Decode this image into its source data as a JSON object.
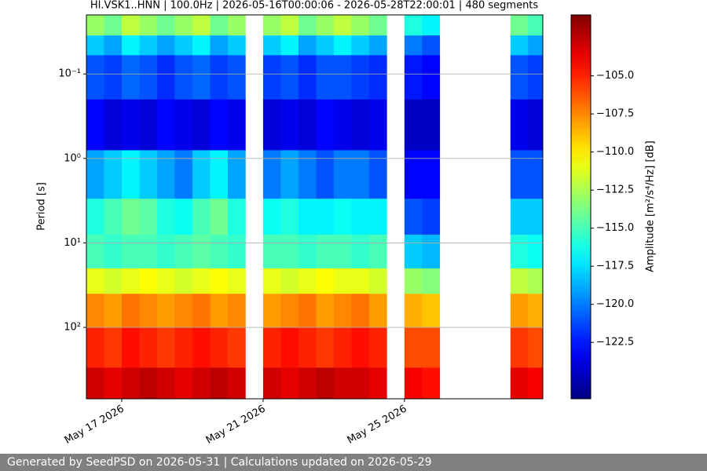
{
  "chart_data": {
    "type": "spectrogram",
    "title": "HI.VSK1..HNN | 100.0Hz | 2026-05-16T00:00:06 - 2026-05-28T22:00:01 | 480 segments",
    "y_label": "Period [s]",
    "colorbar_label": "Amplitude [m²/s⁴/Hz] [dB]",
    "colormap": "jet",
    "log_y": true,
    "grid": true,
    "x": [
      "2026-05-16T00:00",
      "2026-05-16T12:00",
      "2026-05-17T00:00",
      "2026-05-17T12:00",
      "2026-05-18T00:00",
      "2026-05-18T12:00",
      "2026-05-19T00:00",
      "2026-05-19T12:00",
      "2026-05-20T00:00",
      "2026-05-20T12:00",
      "2026-05-21T00:00",
      "2026-05-21T12:00",
      "2026-05-22T00:00",
      "2026-05-22T12:00",
      "2026-05-23T00:00",
      "2026-05-23T12:00",
      "2026-05-24T00:00",
      "2026-05-24T12:00",
      "2026-05-25T00:00",
      "2026-05-25T12:00",
      "2026-05-26T00:00",
      "2026-05-26T12:00",
      "2026-05-27T00:00",
      "2026-05-27T12:00",
      "2026-05-28T00:00",
      "2026-05-28T12:00"
    ],
    "xlim": [
      "2026-05-16T00:00:06",
      "2026-05-28T22:00:01"
    ],
    "xticks": [
      {
        "value": "2026-05-17",
        "label": "May 17 2026"
      },
      {
        "value": "2026-05-21",
        "label": "May 21 2026"
      },
      {
        "value": "2026-05-25",
        "label": "May 25 2026"
      }
    ],
    "y_bins": [
      0.02,
      0.035,
      0.06,
      0.2,
      0.8,
      3,
      8,
      20,
      40,
      100,
      300,
      700
    ],
    "ylim": [
      0.02,
      700
    ],
    "yticks": [
      {
        "value": 0.1,
        "label": "10⁻¹"
      },
      {
        "value": 1,
        "label": "10⁰"
      },
      {
        "value": 10,
        "label": "10¹"
      },
      {
        "value": 100,
        "label": "10²"
      }
    ],
    "clim": [
      -126.2,
      -101
    ],
    "cticks": [
      {
        "value": -105,
        "label": "−105.0"
      },
      {
        "value": -107.5,
        "label": "−107.5"
      },
      {
        "value": -110,
        "label": "−110.0"
      },
      {
        "value": -112.5,
        "label": "−112.5"
      },
      {
        "value": -115,
        "label": "−115.0"
      },
      {
        "value": -117.5,
        "label": "−117.5"
      },
      {
        "value": -120,
        "label": "−120.0"
      },
      {
        "value": -122.5,
        "label": "−122.5"
      }
    ],
    "values": [
      [
        -113,
        -114,
        -112,
        -113,
        -114,
        -113,
        -112,
        -114,
        -113,
        null,
        -113,
        -112,
        -114,
        -113,
        -112,
        -113,
        -114,
        null,
        -116,
        -117,
        null,
        null,
        null,
        null,
        -114,
        -115
      ],
      [
        -118,
        -119,
        -117,
        -118,
        -119,
        -118,
        -117,
        -119,
        -118,
        null,
        -118,
        -117,
        -119,
        -118,
        -117,
        -118,
        -119,
        null,
        -120,
        -121,
        null,
        null,
        null,
        null,
        -118,
        -119
      ],
      [
        -121,
        -121.5,
        -120.5,
        -121,
        -122,
        -121,
        -120.5,
        -121.5,
        -121,
        null,
        -121.5,
        -121,
        -122,
        -121,
        -121,
        -121.5,
        -122,
        null,
        -122.5,
        -123,
        null,
        null,
        null,
        null,
        -121,
        -121.5
      ],
      [
        -123,
        -124,
        -123.5,
        -124,
        -123,
        -123.5,
        -124,
        -123,
        -123.5,
        null,
        -124,
        -123.5,
        -124,
        -123,
        -123.5,
        -124,
        -123.5,
        null,
        -124.5,
        -124.5,
        null,
        null,
        null,
        null,
        -123.5,
        -124
      ],
      [
        -119,
        -118,
        -117,
        -118,
        -119,
        -120,
        -118,
        -117,
        -119,
        null,
        -120,
        -119,
        -120,
        -121,
        -120,
        -120,
        -121,
        null,
        -123,
        -123,
        null,
        null,
        null,
        null,
        -121,
        -121
      ],
      [
        -116,
        -115,
        -114,
        -114.5,
        -116,
        -116.5,
        -115,
        -114,
        -116,
        null,
        -116.5,
        -116,
        -117,
        -117,
        -116.5,
        -117,
        -117,
        null,
        -121,
        -121.5,
        null,
        null,
        null,
        null,
        -118,
        -118
      ],
      [
        -115,
        -115.5,
        -115,
        -115,
        -115.5,
        -115,
        -114.5,
        -115,
        -115.5,
        null,
        -115,
        -115,
        -115.5,
        -115,
        -115,
        -115.5,
        -115,
        null,
        -118,
        -118.5,
        null,
        null,
        null,
        null,
        -116,
        -116.5
      ],
      [
        -111,
        -111.5,
        -111,
        -110.5,
        -111,
        -111.5,
        -111,
        -110.5,
        -111,
        null,
        -111,
        -111.5,
        -111,
        -110.5,
        -111,
        -111,
        -111.5,
        null,
        -113,
        -113.5,
        null,
        null,
        null,
        null,
        -112,
        -112.5
      ],
      [
        -107.5,
        -108,
        -107,
        -107.5,
        -108,
        -107.5,
        -107,
        -108,
        -107.5,
        null,
        -108,
        -107.5,
        -107,
        -108,
        -107.5,
        -107,
        -108,
        null,
        -108.5,
        -109,
        null,
        null,
        null,
        null,
        -108,
        -108.5
      ],
      [
        -105,
        -105.5,
        -104.5,
        -105,
        -105.5,
        -105,
        -104.5,
        -105,
        -105.5,
        null,
        -105,
        -104.5,
        -105,
        -105.5,
        -105,
        -104.5,
        -105,
        null,
        -106,
        -106,
        null,
        null,
        null,
        null,
        -105.5,
        -106
      ],
      [
        -103,
        -103.5,
        -103,
        -102.5,
        -103,
        -103.5,
        -103,
        -102.5,
        -103,
        null,
        -103,
        -103.5,
        -103,
        -102.5,
        -103,
        -103,
        -103.5,
        null,
        -104,
        -104.5,
        null,
        null,
        null,
        null,
        -103.5,
        -104
      ]
    ]
  },
  "footer": "Generated by SeedPSD on 2026-05-31 | Calculations updated on 2026-05-29"
}
